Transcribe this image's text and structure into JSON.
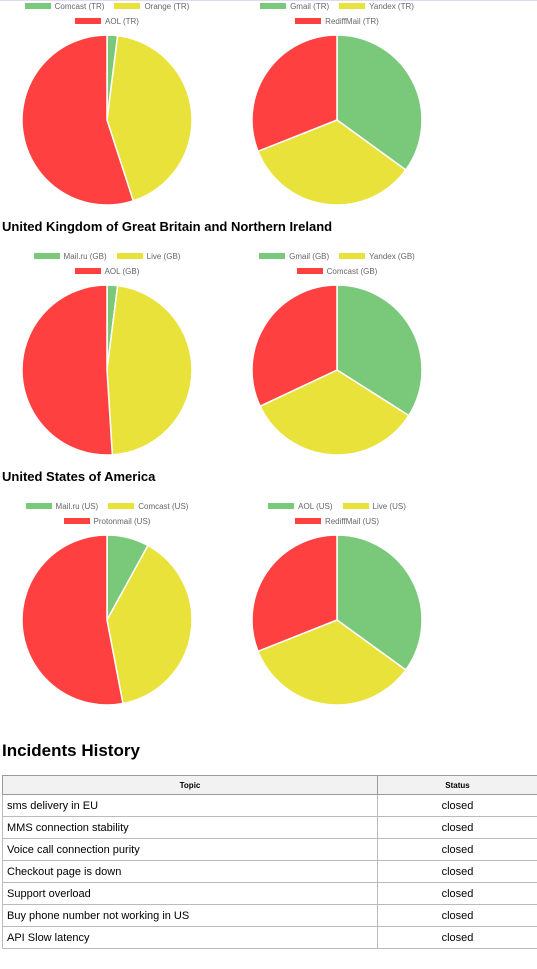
{
  "colors": {
    "green": "#7ac97a",
    "yellow": "#e8e23a",
    "red": "#fe4040"
  },
  "sections": [
    {
      "heading": ""
    },
    {
      "heading": "United Kingdom of Great Britain and Northern Ireland"
    },
    {
      "heading": "United States of America"
    }
  ],
  "chart_data": [
    {
      "type": "pie",
      "labels": [
        "Comcast (TR)",
        "Orange (TR)",
        "AOL (TR)"
      ],
      "values": [
        2,
        43,
        55
      ]
    },
    {
      "type": "pie",
      "labels": [
        "Gmail (TR)",
        "Yandex (TR)",
        "RediffMail (TR)"
      ],
      "values": [
        35,
        34,
        31
      ]
    },
    {
      "type": "pie",
      "labels": [
        "Mail.ru (GB)",
        "Live (GB)",
        "AOL (GB)"
      ],
      "values": [
        2,
        47,
        51
      ]
    },
    {
      "type": "pie",
      "labels": [
        "Gmail (GB)",
        "Yandex (GB)",
        "Comcast (GB)"
      ],
      "values": [
        34,
        34,
        32
      ]
    },
    {
      "type": "pie",
      "labels": [
        "Mail.ru (US)",
        "Comcast (US)",
        "Protonmail (US)"
      ],
      "values": [
        8,
        39,
        53
      ]
    },
    {
      "type": "pie",
      "labels": [
        "AOL (US)",
        "Live (US)",
        "RediffMail (US)"
      ],
      "values": [
        35,
        34,
        31
      ]
    }
  ],
  "incidents": {
    "title": "Incidents History",
    "headers": {
      "topic": "Topic",
      "status": "Status"
    },
    "rows": [
      {
        "topic": "sms delivery in EU",
        "status": "closed"
      },
      {
        "topic": "MMS connection stability",
        "status": "closed"
      },
      {
        "topic": "Voice call connection purity",
        "status": "closed"
      },
      {
        "topic": "Checkout page is down",
        "status": "closed"
      },
      {
        "topic": "Support overload",
        "status": "closed"
      },
      {
        "topic": "Buy phone number not working in US",
        "status": "closed"
      },
      {
        "topic": "API Slow latency",
        "status": "closed"
      }
    ]
  }
}
